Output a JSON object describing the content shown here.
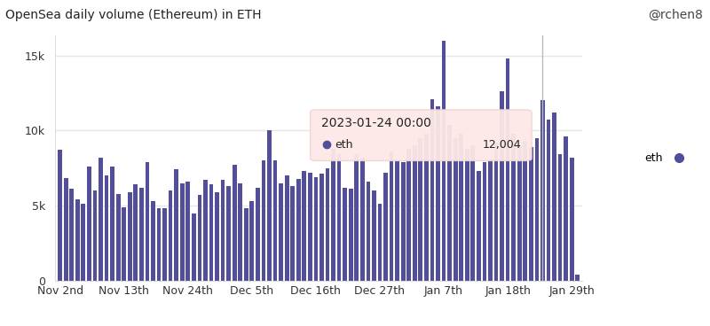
{
  "chart_data": {
    "type": "bar",
    "title": "OpenSea daily volume (Ethereum) in ETH",
    "source": "@rchen8",
    "categories": [
      "Nov 2nd",
      null,
      null,
      null,
      null,
      null,
      null,
      null,
      null,
      null,
      null,
      "Nov 13th",
      null,
      null,
      null,
      null,
      null,
      null,
      null,
      null,
      null,
      null,
      "Nov 24th",
      null,
      null,
      null,
      null,
      null,
      null,
      null,
      null,
      null,
      null,
      "Dec 5th",
      null,
      null,
      null,
      null,
      null,
      null,
      null,
      null,
      null,
      null,
      "Dec 16th",
      null,
      null,
      null,
      null,
      null,
      null,
      null,
      null,
      null,
      null,
      "Dec 27th",
      null,
      null,
      null,
      null,
      null,
      null,
      null,
      null,
      null,
      null,
      "Jan 7th",
      null,
      null,
      null,
      null,
      null,
      null,
      null,
      null,
      null,
      null,
      "Jan 18th",
      null,
      null,
      null,
      null,
      null,
      null,
      null,
      null,
      null,
      null,
      "Jan 29th",
      null
    ],
    "series": [
      {
        "name": "eth",
        "color": "#524e99",
        "values": [
          8700,
          6850,
          6100,
          5400,
          5100,
          7600,
          6000,
          8200,
          7000,
          7600,
          5800,
          4900,
          5900,
          6400,
          6200,
          7900,
          5300,
          4800,
          4800,
          6000,
          7400,
          6500,
          6600,
          4500,
          5700,
          6700,
          6400,
          5900,
          6700,
          6300,
          7700,
          6500,
          4800,
          5300,
          6200,
          8000,
          10000,
          8000,
          6500,
          7000,
          6300,
          6800,
          7300,
          7200,
          6900,
          7100,
          7500,
          8800,
          8500,
          6200,
          6100,
          8400,
          8200,
          6600,
          6000,
          5100,
          7200,
          8600,
          8000,
          7900,
          8800,
          9000,
          9500,
          9800,
          12100,
          11600,
          16000,
          10400,
          9500,
          9800,
          8800,
          9000,
          7300,
          7900,
          8100,
          9200,
          12600,
          14800,
          9800,
          9000,
          9300,
          8900,
          9500,
          12004,
          10700,
          11200,
          8400,
          9600,
          8200,
          400
        ]
      }
    ],
    "ylim": [
      0,
      16300
    ],
    "yticks": [
      0,
      {
        "value": 5000,
        "label": "5k"
      },
      {
        "value": 10000,
        "label": "10k"
      },
      {
        "value": 15000,
        "label": "15k"
      }
    ],
    "grid": true,
    "legend": "right",
    "annotations": [
      {
        "title": "2023-01-24 00:00",
        "series": "eth",
        "value": 12004,
        "label": "12,004"
      }
    ]
  }
}
